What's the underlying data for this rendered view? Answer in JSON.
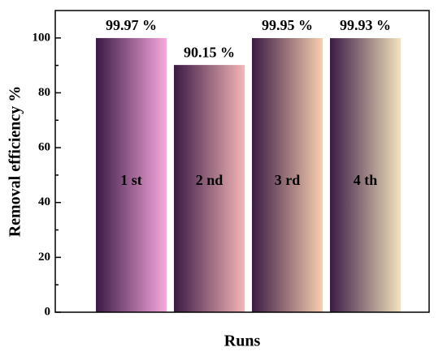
{
  "chart_data": {
    "type": "bar",
    "y_label": "Removal efficiency %",
    "x_label": "Runs",
    "categories": [
      "1 st",
      "2 nd",
      "3 rd",
      "4 th"
    ],
    "values": [
      99.97,
      90.15,
      99.95,
      99.93
    ],
    "value_labels": [
      "99.97 %",
      "90.15 %",
      "99.95 %",
      "99.93 %"
    ],
    "colors": [
      "#f8a8dc",
      "#f4b6b8",
      "#f8ceb0",
      "#f2e2bd"
    ],
    "ylim": [
      0,
      110
    ],
    "yticks": [
      0,
      20,
      40,
      60,
      80,
      100
    ]
  }
}
